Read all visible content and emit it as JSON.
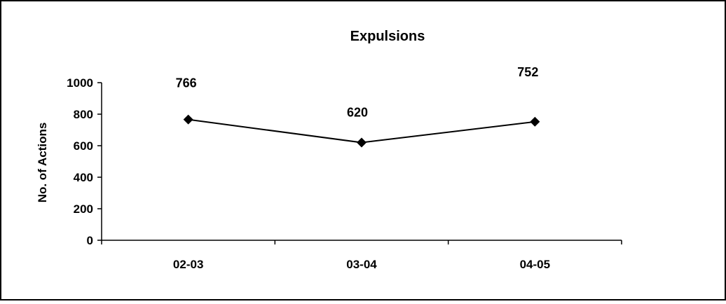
{
  "chart_data": {
    "type": "line",
    "title": "Expulsions",
    "xlabel": "",
    "ylabel": "No. of Actions",
    "categories": [
      "02-03",
      "03-04",
      "04-05"
    ],
    "series": [
      {
        "values": [
          766,
          620,
          752
        ],
        "data_labels": [
          "766",
          "620",
          "752"
        ]
      }
    ],
    "ylim": [
      0,
      1000
    ],
    "yticks": [
      0,
      200,
      400,
      600,
      800,
      1000
    ],
    "ytick_labels": [
      "0",
      "200",
      "400",
      "600",
      "800",
      "1000"
    ],
    "grid": false,
    "legend": "none",
    "line_color": "#000000",
    "marker": "diamond"
  }
}
